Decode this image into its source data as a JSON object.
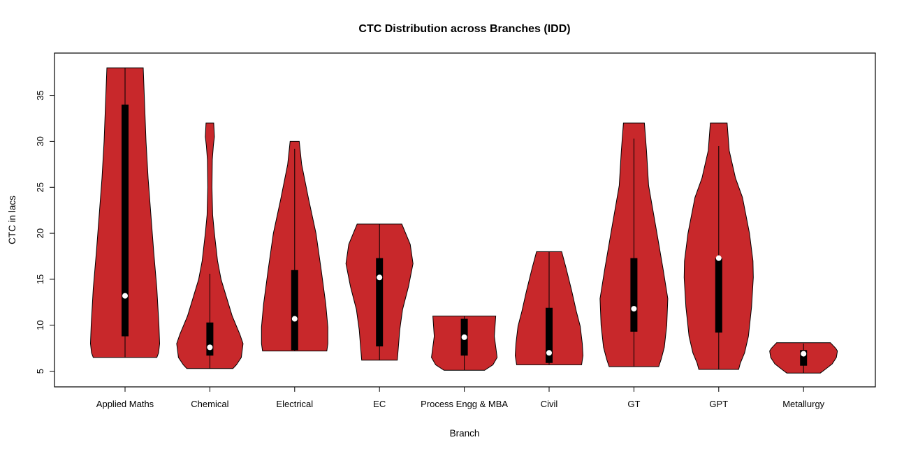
{
  "window": {
    "title": "CTC Distribution across Branches (IDD)"
  },
  "chart_data": {
    "type": "violin",
    "title": "CTC Distribution across Branches (IDD)",
    "xlabel": "Branch",
    "ylabel": "CTC in lacs",
    "grid": false,
    "legend": "none",
    "fill_color": "#C8282B",
    "outline_color": "#000000",
    "box_color": "#000000",
    "median_dot_color": "#FFFFFF",
    "y_ticks": [
      5,
      10,
      15,
      20,
      25,
      30,
      35
    ],
    "y_axis_range": [
      3.3,
      39.6
    ],
    "x_categories": [
      "Applied Maths",
      "Chemical",
      "Electrical",
      "EC",
      "Process Engg & MBA",
      "Civil",
      "GT",
      "GPT",
      "Metallurgy"
    ],
    "violins": [
      {
        "branch": "Applied Maths",
        "min": 6.5,
        "max": 38,
        "q1": 8.8,
        "q3": 34,
        "median": 13.2,
        "whisker_low": 6.5,
        "whisker_high": 38,
        "profile": [
          [
            38,
            0.52
          ],
          [
            36,
            0.54
          ],
          [
            33,
            0.57
          ],
          [
            30,
            0.6
          ],
          [
            26,
            0.66
          ],
          [
            22,
            0.74
          ],
          [
            18,
            0.82
          ],
          [
            14,
            0.91
          ],
          [
            10,
            0.97
          ],
          [
            8,
            0.99
          ],
          [
            7,
            0.96
          ],
          [
            6.5,
            0.91
          ]
        ]
      },
      {
        "branch": "Chemical",
        "min": 5.3,
        "max": 32,
        "q1": 6.7,
        "q3": 10.3,
        "median": 7.6,
        "whisker_low": 5.3,
        "whisker_high": 15.6,
        "profile": [
          [
            32,
            0.11
          ],
          [
            30.5,
            0.13
          ],
          [
            29.5,
            0.1
          ],
          [
            28,
            0.07
          ],
          [
            25,
            0.06
          ],
          [
            22,
            0.08
          ],
          [
            20,
            0.13
          ],
          [
            17,
            0.22
          ],
          [
            15,
            0.32
          ],
          [
            13,
            0.48
          ],
          [
            11,
            0.64
          ],
          [
            9,
            0.86
          ],
          [
            8,
            0.95
          ],
          [
            6.5,
            0.9
          ],
          [
            5.7,
            0.76
          ],
          [
            5.3,
            0.66
          ]
        ]
      },
      {
        "branch": "Electrical",
        "min": 7.2,
        "max": 30,
        "q1": 7.3,
        "q3": 16,
        "median": 10.7,
        "whisker_low": 7.2,
        "whisker_high": 29.2,
        "profile": [
          [
            30,
            0.13
          ],
          [
            27.5,
            0.2
          ],
          [
            23.7,
            0.4
          ],
          [
            20,
            0.61
          ],
          [
            16,
            0.76
          ],
          [
            12.3,
            0.89
          ],
          [
            9.8,
            0.95
          ],
          [
            8,
            0.95
          ],
          [
            7.2,
            0.92
          ]
        ]
      },
      {
        "branch": "EC",
        "min": 6.2,
        "max": 21,
        "q1": 7.7,
        "q3": 17.3,
        "median": 15.2,
        "whisker_low": 6.2,
        "whisker_high": 21,
        "profile": [
          [
            21,
            0.64
          ],
          [
            18.8,
            0.88
          ],
          [
            16.7,
            0.96
          ],
          [
            14.2,
            0.83
          ],
          [
            11.7,
            0.66
          ],
          [
            9.5,
            0.58
          ],
          [
            7.6,
            0.54
          ],
          [
            6.2,
            0.51
          ]
        ]
      },
      {
        "branch": "Process Engg & MBA",
        "min": 5.1,
        "max": 11,
        "q1": 6.7,
        "q3": 10.7,
        "median": 8.7,
        "whisker_low": 5.1,
        "whisker_high": 11,
        "profile": [
          [
            11,
            0.9
          ],
          [
            8.8,
            0.86
          ],
          [
            6.5,
            0.94
          ],
          [
            5.7,
            0.82
          ],
          [
            5.1,
            0.58
          ]
        ]
      },
      {
        "branch": "Civil",
        "min": 5.7,
        "max": 18,
        "q1": 5.9,
        "q3": 11.9,
        "median": 7.0,
        "whisker_low": 5.7,
        "whisker_high": 18,
        "profile": [
          [
            18,
            0.36
          ],
          [
            16.3,
            0.48
          ],
          [
            13.7,
            0.65
          ],
          [
            11.5,
            0.78
          ],
          [
            9.9,
            0.89
          ],
          [
            8,
            0.95
          ],
          [
            6.7,
            0.97
          ],
          [
            5.7,
            0.93
          ]
        ]
      },
      {
        "branch": "GT",
        "min": 5.5,
        "max": 32,
        "q1": 9.3,
        "q3": 17.3,
        "median": 11.8,
        "whisker_low": 5.5,
        "whisker_high": 30.3,
        "profile": [
          [
            32,
            0.3
          ],
          [
            29,
            0.36
          ],
          [
            25.2,
            0.42
          ],
          [
            20.2,
            0.65
          ],
          [
            16,
            0.84
          ],
          [
            12.9,
            0.97
          ],
          [
            10,
            0.94
          ],
          [
            7.6,
            0.87
          ],
          [
            6.3,
            0.78
          ],
          [
            5.5,
            0.71
          ]
        ]
      },
      {
        "branch": "GPT",
        "min": 5.2,
        "max": 32,
        "q1": 9.2,
        "q3": 17.3,
        "median": 17.3,
        "whisker_low": 5.2,
        "whisker_high": 29.5,
        "profile": [
          [
            32,
            0.24
          ],
          [
            29,
            0.3
          ],
          [
            26,
            0.48
          ],
          [
            23.9,
            0.68
          ],
          [
            20,
            0.88
          ],
          [
            17,
            0.98
          ],
          [
            15.2,
            0.99
          ],
          [
            12,
            0.94
          ],
          [
            8.8,
            0.85
          ],
          [
            7,
            0.74
          ],
          [
            5.9,
            0.62
          ],
          [
            5.2,
            0.57
          ]
        ]
      },
      {
        "branch": "Metallurgy",
        "min": 4.8,
        "max": 8.1,
        "q1": 5.6,
        "q3": 7.3,
        "median": 6.9,
        "whisker_low": 4.8,
        "whisker_high": 8.0,
        "profile": [
          [
            8.1,
            0.77
          ],
          [
            7.5,
            0.92
          ],
          [
            7.2,
            0.97
          ],
          [
            6.5,
            0.94
          ],
          [
            5.8,
            0.82
          ],
          [
            5.2,
            0.62
          ],
          [
            4.8,
            0.48
          ]
        ]
      }
    ]
  }
}
